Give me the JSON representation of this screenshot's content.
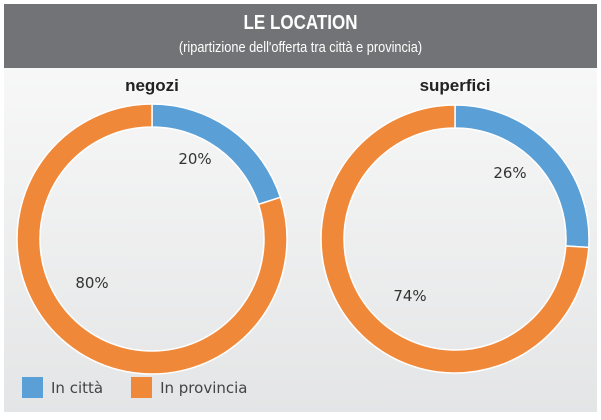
{
  "header": {
    "title": "LE LOCATION",
    "subtitle": "(ripartizione dell'offerta tra città e provincia)"
  },
  "chart_data": [
    {
      "type": "pie",
      "title": "negozi",
      "categories": [
        "In città",
        "In provincia"
      ],
      "values": [
        20,
        80
      ],
      "labels": [
        "20%",
        "80%"
      ],
      "colors": [
        "#5a9fd6",
        "#f0883a"
      ]
    },
    {
      "type": "pie",
      "title": "superfici",
      "categories": [
        "In città",
        "In provincia"
      ],
      "values": [
        26,
        74
      ],
      "labels": [
        "26%",
        "74%"
      ],
      "colors": [
        "#5a9fd6",
        "#f0883a"
      ]
    }
  ],
  "legend": [
    {
      "label": "In città",
      "color": "#5a9fd6"
    },
    {
      "label": "In provincia",
      "color": "#f0883a"
    }
  ]
}
